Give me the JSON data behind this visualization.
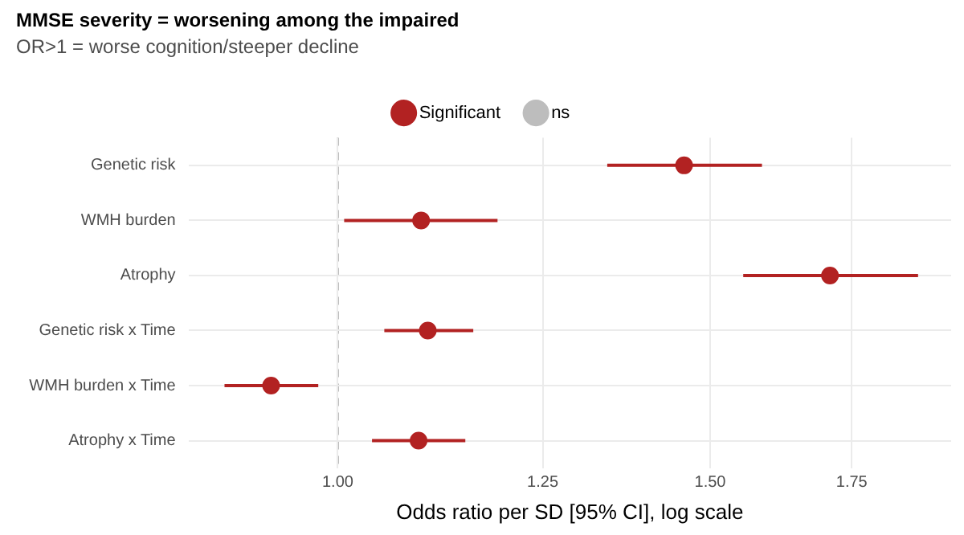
{
  "chart_data": {
    "type": "scatter",
    "title": "MMSE severity = worsening among the impaired",
    "subtitle": "OR>1 = worse cognition/steeper decline",
    "xlabel": "Odds ratio per SD [95% CI], log scale",
    "orientation": "horizontal",
    "log": "x",
    "grid": true,
    "legend": "top",
    "marker": "circle",
    "categories": [
      "Genetic risk",
      "WMH burden",
      "Atrophy",
      "Genetic risk x Time",
      "WMH burden x Time",
      "Atrophy x Time"
    ],
    "series": [
      {
        "name": "Significant",
        "color": "#b22222",
        "values": [
          1.458,
          1.095,
          1.709,
          1.103,
          0.93,
          1.092
        ],
        "errors": [
          [
            1.341,
            1.587
          ],
          [
            1.007,
            1.19
          ],
          [
            1.555,
            1.881
          ],
          [
            1.052,
            1.159
          ],
          [
            0.884,
            0.979
          ],
          [
            1.038,
            1.149
          ]
        ]
      },
      {
        "name": "ns",
        "color": "#bdbdbd",
        "values": [
          null,
          null,
          null,
          null,
          null,
          null
        ]
      }
    ],
    "xlim": [
      0.85,
      1.95
    ],
    "xticks": [
      {
        "value": 1,
        "label": "1.00"
      },
      {
        "value": 1.25,
        "label": "1.25"
      },
      {
        "value": 1.5,
        "label": "1.50"
      },
      {
        "value": 1.75,
        "label": "1.75"
      }
    ],
    "ref_lines": [
      {
        "axis": "x",
        "value": 1,
        "color": "#999999",
        "line_style": "dashed"
      }
    ]
  }
}
